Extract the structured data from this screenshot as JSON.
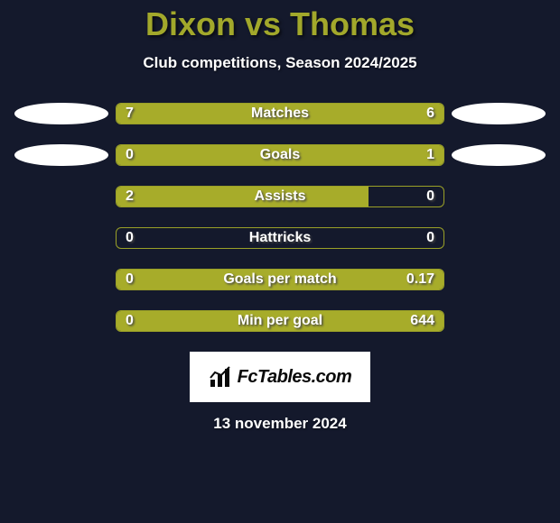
{
  "title": "Dixon vs Thomas",
  "subtitle": "Club competitions, Season 2024/2025",
  "title_color": "#a2a82b",
  "subtitle_color": "#ffffff",
  "background_color": "#14192c",
  "bar_fill_color": "#a7ac2a",
  "bar_border_color": "#9aa027",
  "avatar_color": "#ffffff",
  "text_color": "#ffffff",
  "title_fontsize": 36,
  "subtitle_fontsize": 17,
  "label_fontsize": 16,
  "value_fontsize": 16,
  "rows": [
    {
      "label": "Matches",
      "left": "7",
      "right": "6",
      "left_pct": 53.8,
      "right_pct": 46.2,
      "show_avatars": true
    },
    {
      "label": "Goals",
      "left": "0",
      "right": "1",
      "left_pct": 17.0,
      "right_pct": 83.0,
      "show_avatars": true
    },
    {
      "label": "Assists",
      "left": "2",
      "right": "0",
      "left_pct": 77.0,
      "right_pct": 0.0,
      "show_avatars": false
    },
    {
      "label": "Hattricks",
      "left": "0",
      "right": "0",
      "left_pct": 0.0,
      "right_pct": 0.0,
      "show_avatars": false
    },
    {
      "label": "Goals per match",
      "left": "0",
      "right": "0.17",
      "left_pct": 0.0,
      "right_pct": 100.0,
      "show_avatars": false
    },
    {
      "label": "Min per goal",
      "left": "0",
      "right": "644",
      "left_pct": 0.0,
      "right_pct": 100.0,
      "show_avatars": false
    }
  ],
  "logo_text": "FcTables.com",
  "timestamp": "13 november 2024"
}
